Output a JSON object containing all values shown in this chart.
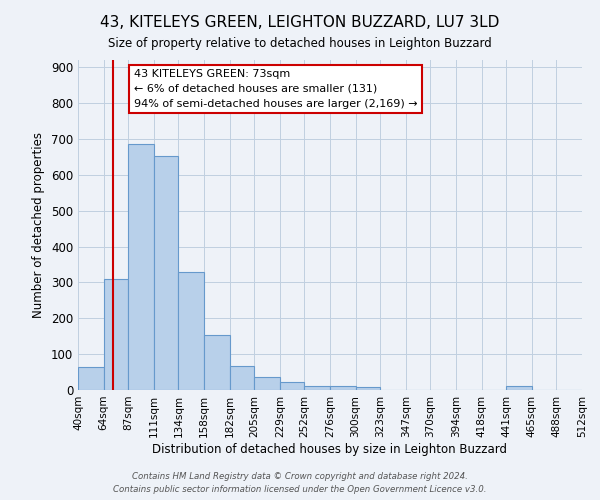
{
  "title": "43, KITELEYS GREEN, LEIGHTON BUZZARD, LU7 3LD",
  "subtitle": "Size of property relative to detached houses in Leighton Buzzard",
  "xlabel": "Distribution of detached houses by size in Leighton Buzzard",
  "ylabel": "Number of detached properties",
  "bin_labels": [
    "40sqm",
    "64sqm",
    "87sqm",
    "111sqm",
    "134sqm",
    "158sqm",
    "182sqm",
    "205sqm",
    "229sqm",
    "252sqm",
    "276sqm",
    "300sqm",
    "323sqm",
    "347sqm",
    "370sqm",
    "394sqm",
    "418sqm",
    "441sqm",
    "465sqm",
    "488sqm",
    "512sqm"
  ],
  "bar_heights": [
    65,
    310,
    685,
    652,
    328,
    152,
    68,
    36,
    22,
    12,
    10,
    8,
    0,
    0,
    0,
    0,
    0,
    10,
    0,
    0,
    0
  ],
  "bar_color": "#b8d0ea",
  "bar_edge_color": "#6699cc",
  "vline_x": 73,
  "vline_color": "#cc0000",
  "annotation_text": "43 KITELEYS GREEN: 73sqm\n← 6% of detached houses are smaller (131)\n94% of semi-detached houses are larger (2,169) →",
  "annotation_box_color": "#ffffff",
  "annotation_box_edge": "#cc0000",
  "ylim": [
    0,
    920
  ],
  "yticks": [
    0,
    100,
    200,
    300,
    400,
    500,
    600,
    700,
    800,
    900
  ],
  "footer_line1": "Contains HM Land Registry data © Crown copyright and database right 2024.",
  "footer_line2": "Contains public sector information licensed under the Open Government Licence v3.0.",
  "background_color": "#eef2f8",
  "plot_bg_color": "#eef2f8",
  "grid_color": "#c0cfe0"
}
